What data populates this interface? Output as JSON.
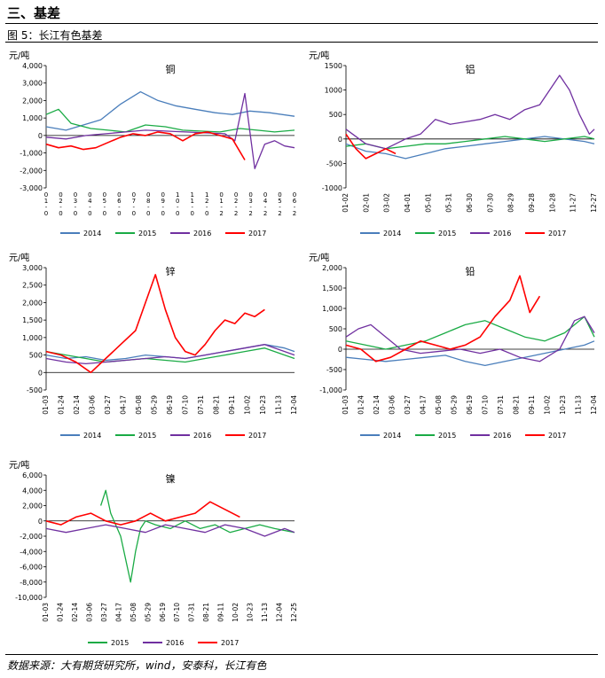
{
  "header": {
    "section_title": "三、基差",
    "figure_caption": "图 5：长江有色基差",
    "source": "数据来源：大有期货研究所，wind，安泰科，长江有色"
  },
  "colors": {
    "2014": "#4a7ebb",
    "2015": "#1aab45",
    "2016": "#7030a0",
    "2017": "#ff0000"
  },
  "chart_data": [
    {
      "type": "line",
      "title": "铜",
      "ylabel": "元/吨",
      "ylim": [
        -3000,
        4000
      ],
      "yticks": [
        -3000,
        -2000,
        -1000,
        0,
        1000,
        2000,
        3000,
        4000
      ],
      "ytick_labels": [
        "-3,000",
        "-2,000",
        "-1,000",
        "0",
        "1,000",
        "2,000",
        "3,000",
        "4,000"
      ],
      "x_tick_labels": [
        "0\n1\n-\n0",
        "0\n2\n-\n0",
        "0\n3\n-\n0",
        "0\n4\n-\n0",
        "0\n5\n-\n0",
        "0\n6\n-\n0",
        "0\n7\n-\n0",
        "0\n8\n-\n0",
        "0\n9\n-\n0",
        "1\n0\n-\n0",
        "1\n1\n-\n0",
        "1\n2\n-\n0",
        "0\n1\n-\n2",
        "0\n2\n-\n2",
        "0\n3\n-\n2",
        "0\n4\n-\n2",
        "0\n5\n-\n2",
        "0\n6\n-\n2"
      ],
      "legend": "bottom",
      "series": [
        {
          "name": "2014",
          "x": [
            0,
            8,
            15,
            22,
            30,
            38,
            45,
            52,
            60,
            68,
            75,
            82,
            90,
            100
          ],
          "values": [
            500,
            300,
            600,
            900,
            1800,
            2500,
            2000,
            1700,
            1500,
            1300,
            1200,
            1400,
            1300,
            1100
          ]
        },
        {
          "name": "2015",
          "x": [
            0,
            5,
            10,
            18,
            25,
            32,
            40,
            48,
            55,
            62,
            70,
            78,
            85,
            92,
            100
          ],
          "values": [
            1200,
            1500,
            700,
            400,
            300,
            200,
            600,
            500,
            300,
            250,
            200,
            400,
            300,
            200,
            300
          ]
        },
        {
          "name": "2016",
          "x": [
            0,
            8,
            16,
            24,
            32,
            40,
            48,
            56,
            64,
            72,
            76,
            80,
            84,
            88,
            92,
            96,
            100
          ],
          "values": [
            -100,
            -200,
            0,
            100,
            200,
            300,
            250,
            200,
            150,
            100,
            -300,
            2400,
            -1900,
            -500,
            -300,
            -600,
            -700
          ]
        },
        {
          "name": "2017",
          "x": [
            0,
            5,
            10,
            15,
            20,
            25,
            30,
            35,
            40,
            45,
            50,
            55,
            60,
            65,
            70,
            75,
            80
          ],
          "values": [
            -500,
            -700,
            -600,
            -800,
            -700,
            -400,
            -100,
            100,
            0,
            200,
            100,
            -300,
            100,
            200,
            0,
            -200,
            -1400
          ]
        }
      ]
    },
    {
      "type": "line",
      "title": "铝",
      "ylabel": "元/吨",
      "ylim": [
        -1000,
        1500
      ],
      "yticks": [
        -1000,
        -500,
        0,
        500,
        1000,
        1500
      ],
      "ytick_labels": [
        "-1000",
        "-500",
        "0",
        "500",
        "1000",
        "1500"
      ],
      "x_tick_labels": [
        "01-02",
        "02-01",
        "03-02",
        "04-01",
        "05-01",
        "05-31",
        "06-30",
        "07-30",
        "08-29",
        "09-28",
        "10-28",
        "11-27",
        "12-27"
      ],
      "legend": "bottom",
      "series": [
        {
          "name": "2014",
          "x": [
            0,
            8,
            16,
            24,
            32,
            40,
            48,
            56,
            64,
            72,
            80,
            88,
            96,
            100
          ],
          "values": [
            -100,
            -250,
            -300,
            -400,
            -300,
            -200,
            -150,
            -100,
            -50,
            0,
            50,
            0,
            -50,
            -100
          ]
        },
        {
          "name": "2015",
          "x": [
            0,
            8,
            16,
            24,
            32,
            40,
            48,
            56,
            64,
            72,
            80,
            88,
            96,
            100
          ],
          "values": [
            -150,
            -100,
            -200,
            -150,
            -100,
            -100,
            -50,
            0,
            50,
            0,
            -50,
            0,
            50,
            0
          ]
        },
        {
          "name": "2016",
          "x": [
            0,
            8,
            16,
            24,
            30,
            36,
            42,
            48,
            54,
            60,
            66,
            72,
            78,
            82,
            86,
            90,
            94,
            98,
            100
          ],
          "values": [
            200,
            -100,
            -200,
            0,
            100,
            400,
            300,
            350,
            400,
            500,
            400,
            600,
            700,
            1000,
            1300,
            1000,
            500,
            100,
            200
          ]
        },
        {
          "name": "2017",
          "x": [
            0,
            4,
            8,
            12,
            16,
            20
          ],
          "values": [
            100,
            -200,
            -400,
            -300,
            -200,
            -300
          ]
        }
      ]
    },
    {
      "type": "line",
      "title": "锌",
      "ylabel": "元/吨",
      "ylim": [
        -500,
        3000
      ],
      "yticks": [
        -500,
        0,
        500,
        1000,
        1500,
        2000,
        2500,
        3000
      ],
      "ytick_labels": [
        "-500",
        "0",
        "500",
        "1,000",
        "1,500",
        "2,000",
        "2,500",
        "3,000"
      ],
      "x_tick_labels": [
        "01-03",
        "01-24",
        "02-14",
        "03-06",
        "03-27",
        "04-17",
        "05-08",
        "05-29",
        "06-19",
        "07-10",
        "07-31",
        "08-21",
        "09-11",
        "10-02",
        "10-23",
        "11-13",
        "12-04"
      ],
      "legend": "bottom",
      "series": [
        {
          "name": "2014",
          "x": [
            0,
            8,
            16,
            24,
            32,
            40,
            48,
            56,
            64,
            72,
            80,
            88,
            96,
            100
          ],
          "values": [
            500,
            400,
            450,
            350,
            400,
            500,
            450,
            400,
            500,
            600,
            700,
            800,
            700,
            600
          ]
        },
        {
          "name": "2015",
          "x": [
            0,
            8,
            16,
            24,
            32,
            40,
            48,
            56,
            64,
            72,
            80,
            88,
            96,
            100
          ],
          "values": [
            600,
            500,
            400,
            300,
            350,
            400,
            350,
            300,
            400,
            500,
            600,
            700,
            500,
            400
          ]
        },
        {
          "name": "2016",
          "x": [
            0,
            8,
            16,
            24,
            32,
            40,
            48,
            56,
            64,
            72,
            80,
            88,
            96,
            100
          ],
          "values": [
            400,
            300,
            250,
            300,
            350,
            400,
            450,
            400,
            500,
            600,
            700,
            800,
            600,
            500
          ]
        },
        {
          "name": "2017",
          "x": [
            0,
            6,
            12,
            18,
            24,
            30,
            36,
            40,
            44,
            48,
            52,
            56,
            60,
            64,
            68,
            72,
            76,
            80,
            84,
            88
          ],
          "values": [
            600,
            500,
            300,
            0,
            400,
            800,
            1200,
            2000,
            2800,
            1800,
            1000,
            600,
            500,
            800,
            1200,
            1500,
            1400,
            1700,
            1600,
            1800
          ]
        }
      ]
    },
    {
      "type": "line",
      "title": "铅",
      "ylabel": "元/吨",
      "ylim": [
        -1000,
        2000
      ],
      "yticks": [
        -1000,
        -500,
        0,
        500,
        1000,
        1500,
        2000
      ],
      "ytick_labels": [
        "-1,000",
        "-500",
        "0",
        "500",
        "1,000",
        "1,500",
        "2,000"
      ],
      "x_tick_labels": [
        "01-03",
        "01-24",
        "02-14",
        "03-06",
        "03-27",
        "04-17",
        "05-08",
        "05-29",
        "06-19",
        "07-10",
        "07-31",
        "08-21",
        "09-11",
        "10-02",
        "10-23",
        "11-13",
        "12-04"
      ],
      "legend": "bottom",
      "series": [
        {
          "name": "2014",
          "x": [
            0,
            8,
            16,
            24,
            32,
            40,
            48,
            56,
            64,
            72,
            80,
            88,
            96,
            100
          ],
          "values": [
            -200,
            -250,
            -300,
            -250,
            -200,
            -150,
            -300,
            -400,
            -300,
            -200,
            -100,
            0,
            100,
            200
          ]
        },
        {
          "name": "2015",
          "x": [
            0,
            8,
            16,
            24,
            32,
            40,
            48,
            56,
            64,
            72,
            80,
            88,
            96,
            100
          ],
          "values": [
            200,
            100,
            0,
            100,
            200,
            400,
            600,
            700,
            500,
            300,
            200,
            400,
            800,
            300
          ]
        },
        {
          "name": "2016",
          "x": [
            0,
            5,
            10,
            16,
            22,
            30,
            38,
            46,
            54,
            62,
            70,
            78,
            86,
            92,
            96,
            100
          ],
          "values": [
            300,
            500,
            600,
            300,
            0,
            -100,
            -50,
            0,
            -100,
            0,
            -200,
            -300,
            0,
            700,
            800,
            400
          ]
        },
        {
          "name": "2017",
          "x": [
            0,
            6,
            12,
            18,
            24,
            30,
            36,
            42,
            48,
            54,
            60,
            66,
            70,
            74,
            78
          ],
          "values": [
            100,
            0,
            -300,
            -200,
            0,
            200,
            100,
            0,
            100,
            300,
            800,
            1200,
            1800,
            900,
            1300
          ]
        }
      ]
    },
    {
      "type": "line",
      "title": "镍",
      "ylabel": "元/吨",
      "ylim": [
        -10000,
        6000
      ],
      "yticks": [
        -10000,
        -8000,
        -6000,
        -4000,
        -2000,
        0,
        2000,
        4000,
        6000
      ],
      "ytick_labels": [
        "-10,000",
        "-8,000",
        "-6,000",
        "-4,000",
        "-2,000",
        "0",
        "2,000",
        "4,000",
        "6,000"
      ],
      "x_tick_labels": [
        "01-03",
        "01-24",
        "02-14",
        "03-06",
        "03-27",
        "04-17",
        "05-08",
        "05-29",
        "06-19",
        "07-10",
        "07-31",
        "08-21",
        "09-11",
        "10-02",
        "10-23",
        "11-13",
        "12-04",
        "12-25"
      ],
      "legend": "bottom",
      "series": [
        {
          "name": "2015",
          "x": [
            22,
            24,
            26,
            28,
            30,
            32,
            34,
            36,
            38,
            40,
            44,
            50,
            56,
            62,
            68,
            74,
            80,
            86,
            92,
            100
          ],
          "values": [
            2000,
            4000,
            1000,
            -500,
            -2000,
            -5000,
            -8000,
            -4000,
            -1000,
            0,
            -500,
            -1000,
            0,
            -1000,
            -500,
            -1500,
            -1000,
            -500,
            -1000,
            -1500
          ]
        },
        {
          "name": "2016",
          "x": [
            0,
            8,
            16,
            24,
            32,
            40,
            48,
            56,
            64,
            72,
            80,
            88,
            96,
            100
          ],
          "values": [
            -1000,
            -1500,
            -1000,
            -500,
            -1000,
            -1500,
            -500,
            -1000,
            -1500,
            -500,
            -1000,
            -2000,
            -1000,
            -1500
          ]
        },
        {
          "name": "2017",
          "x": [
            0,
            6,
            12,
            18,
            24,
            30,
            36,
            42,
            48,
            54,
            60,
            66,
            72,
            78
          ],
          "values": [
            0,
            -500,
            500,
            1000,
            0,
            -500,
            0,
            1000,
            0,
            500,
            1000,
            2500,
            1500,
            500
          ]
        }
      ]
    }
  ]
}
